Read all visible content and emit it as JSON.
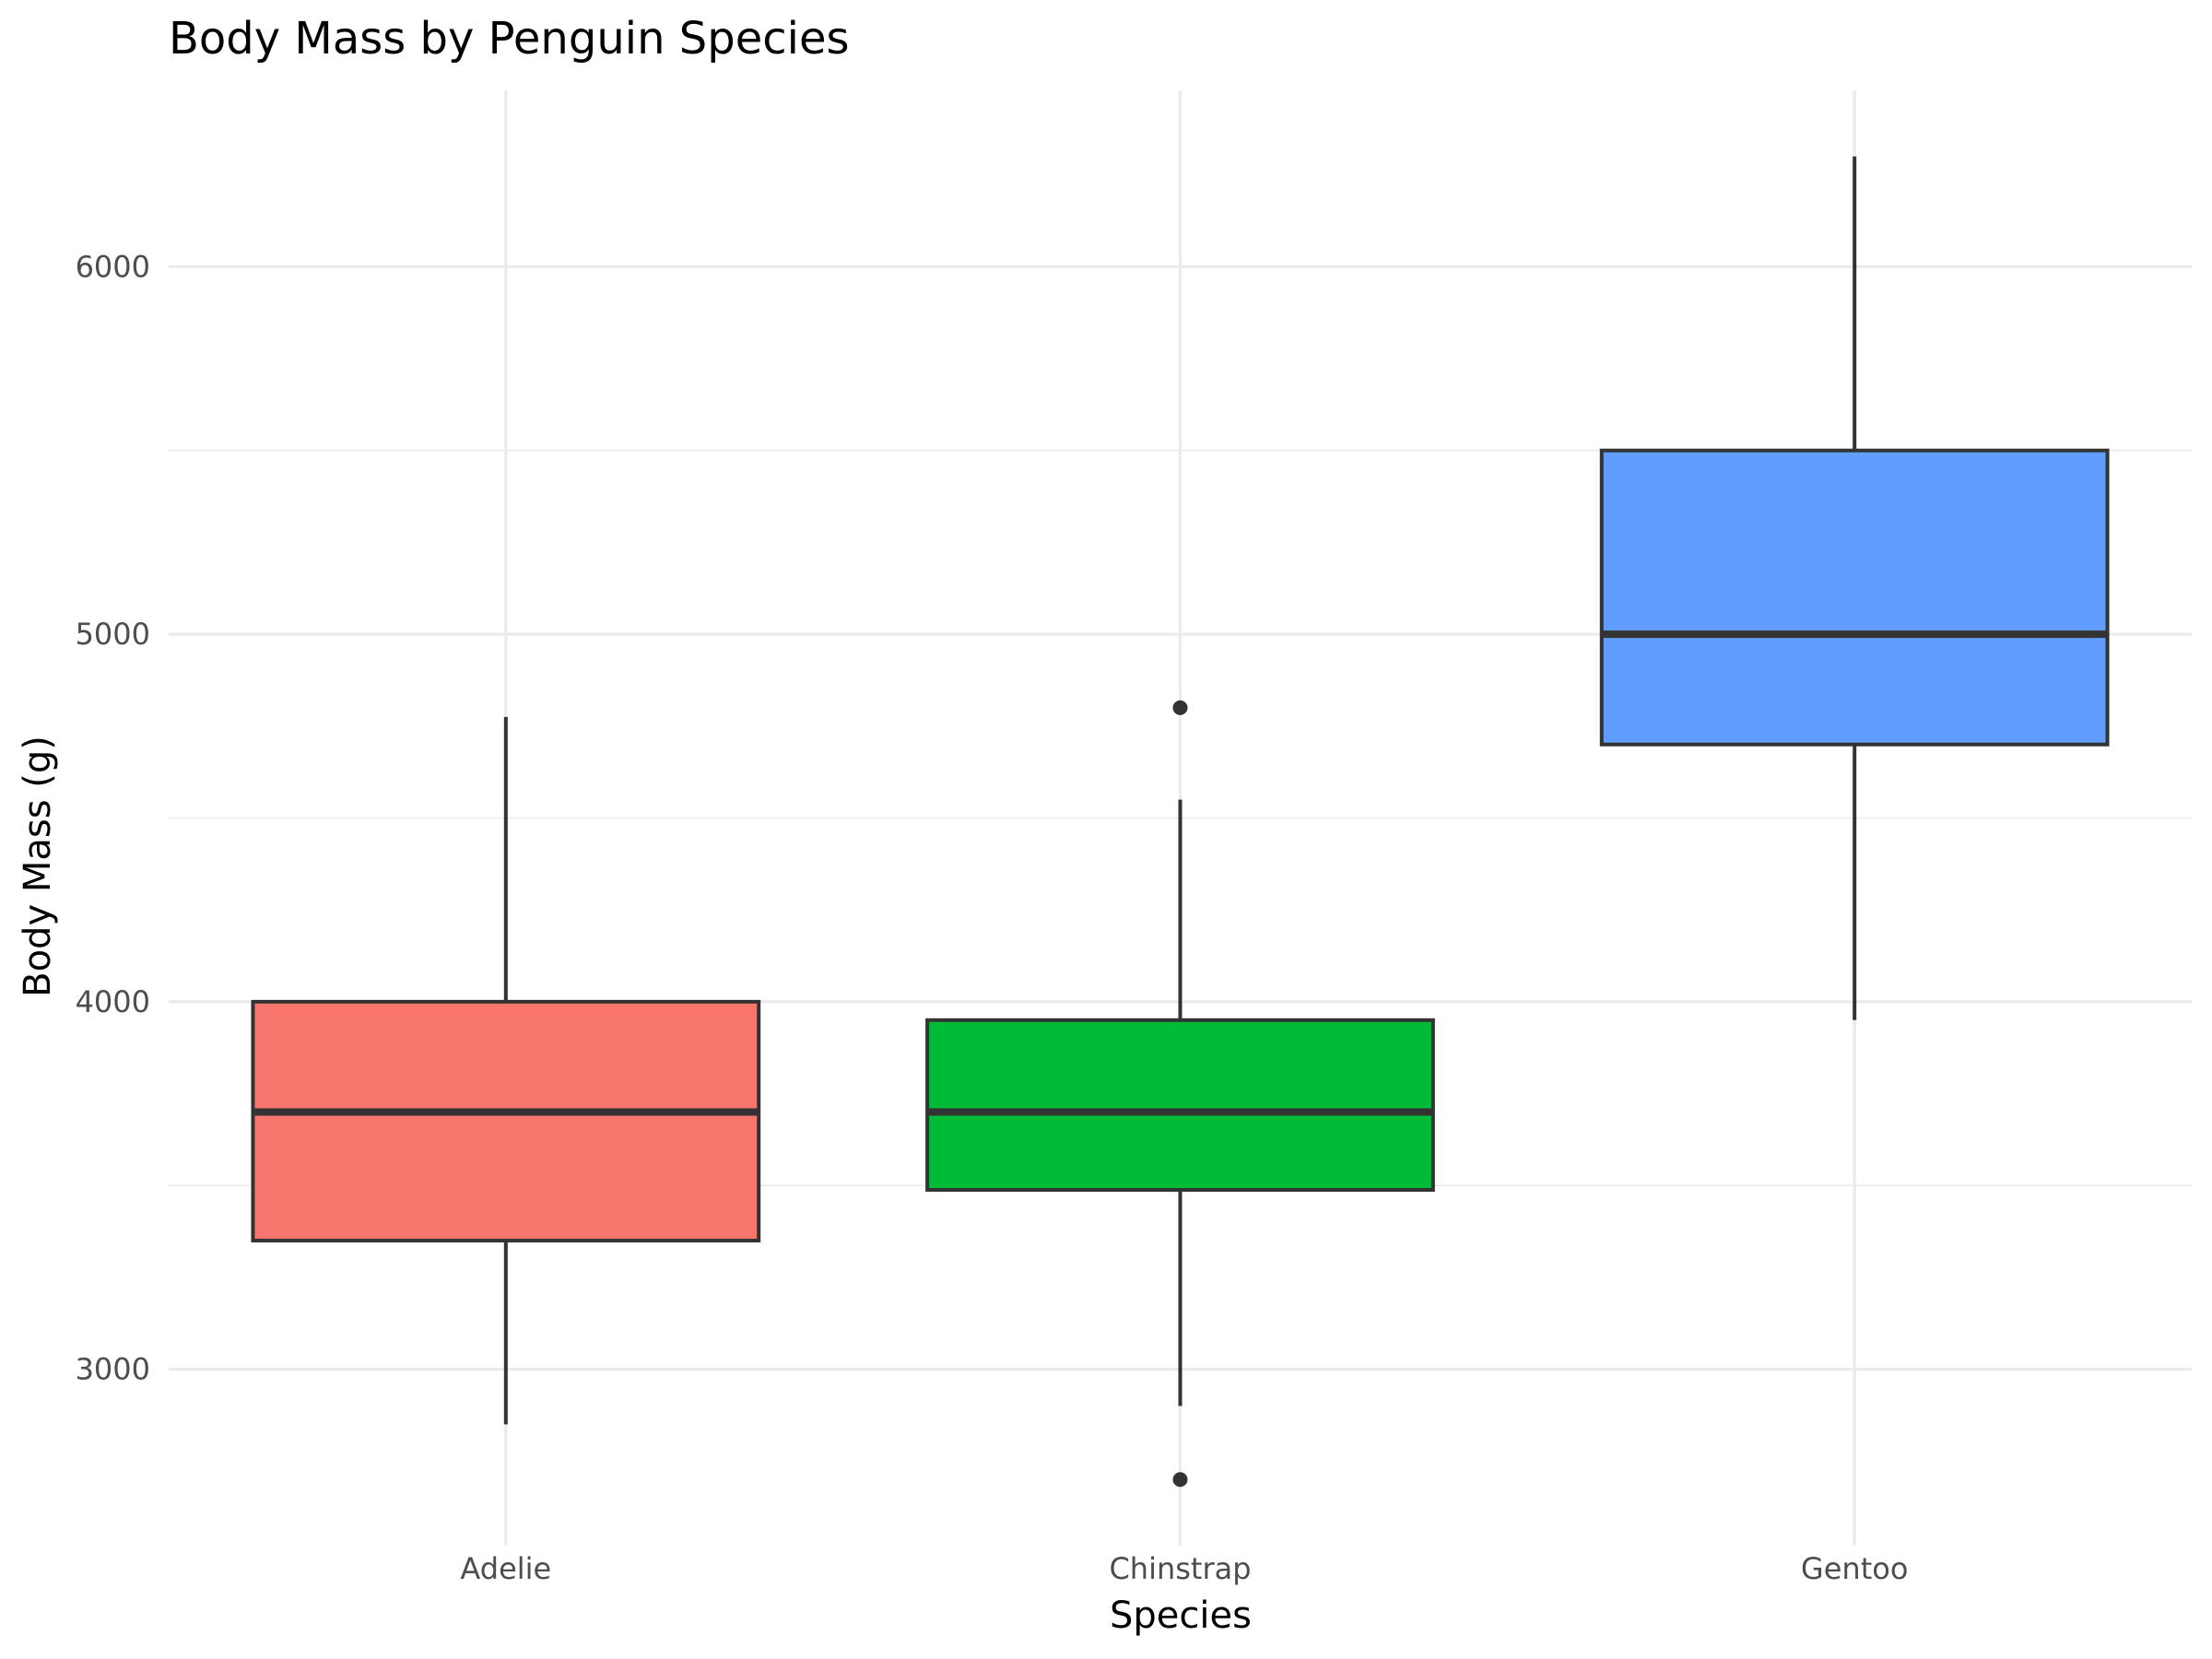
{
  "chart_data": {
    "type": "boxplot",
    "title": "Body Mass by Penguin Species",
    "xlabel": "Species",
    "ylabel": "Body Mass (g)",
    "ylim": [
      2520,
      6480
    ],
    "yticks": [
      3000,
      4000,
      5000,
      6000
    ],
    "yticks_minor": [
      3500,
      4500,
      5500
    ],
    "grid": true,
    "legend": "none",
    "categories": [
      "Adelie",
      "Chinstrap",
      "Gentoo"
    ],
    "boxes": [
      {
        "category": "Adelie",
        "color": "#F8766D",
        "whisker_low": 2850,
        "q1": 3350,
        "median": 3700,
        "q3": 4000,
        "whisker_high": 4775,
        "outliers": []
      },
      {
        "category": "Chinstrap",
        "color": "#00BA38",
        "whisker_low": 2900,
        "q1": 3488,
        "median": 3700,
        "q3": 3950,
        "whisker_high": 4550,
        "outliers": [
          4800,
          2700
        ]
      },
      {
        "category": "Gentoo",
        "color": "#619CFF",
        "whisker_low": 3950,
        "q1": 4700,
        "median": 5000,
        "q3": 5500,
        "whisker_high": 6300,
        "outliers": []
      }
    ]
  }
}
